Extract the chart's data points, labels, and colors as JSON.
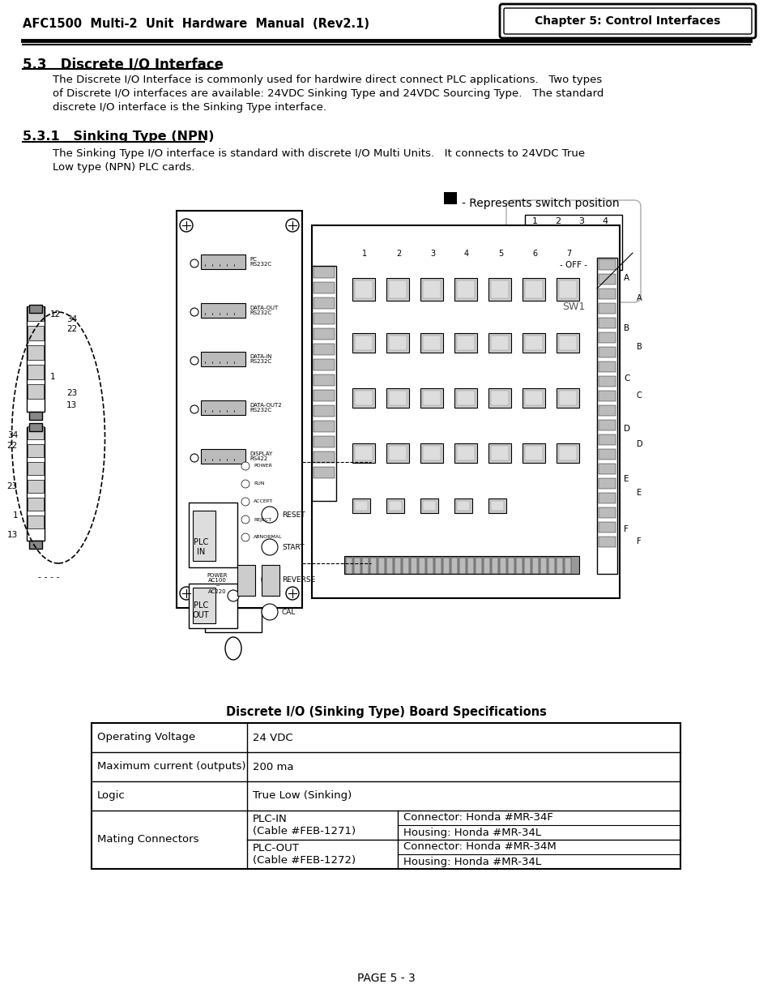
{
  "header_left": "AFC1500  Multi-2  Unit  Hardware  Manual  (Rev2.1)",
  "header_right": "Chapter 5: Control Interfaces",
  "section_title": "5.3   Discrete I/O Interface",
  "section_para_lines": [
    "The Discrete I/O Interface is commonly used for hardwire direct connect PLC applications.   Two types",
    "of Discrete I/O interfaces are available: 24VDC Sinking Type and 24VDC Sourcing Type.   The standard",
    "discrete I/O interface is the Sinking Type interface."
  ],
  "subsection_title": "5.3.1   Sinking Type (NPN)",
  "subsection_para_lines": [
    "The Sinking Type I/O interface is standard with discrete I/O Multi Units.   It connects to 24VDC True",
    "Low type (NPN) PLC cards."
  ],
  "legend_text": "- Represents switch position",
  "table_title": "Discrete I/O (Sinking Type) Board Specifications",
  "footer": "PAGE 5 - 3",
  "bg_color": "#ffffff"
}
